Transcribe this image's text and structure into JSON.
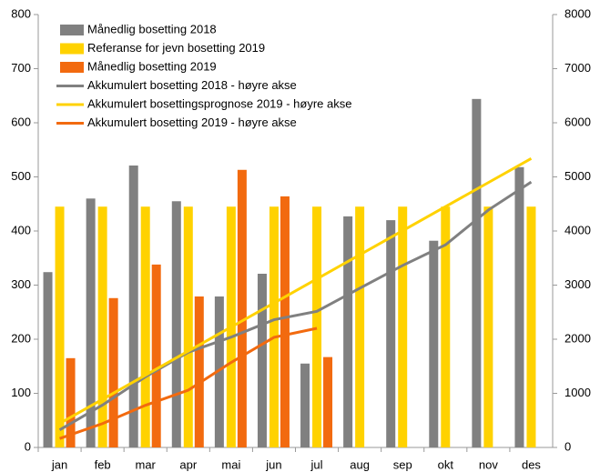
{
  "chart_data": {
    "type": "bar",
    "categories": [
      "jan",
      "feb",
      "mar",
      "apr",
      "mai",
      "jun",
      "jul",
      "aug",
      "sep",
      "okt",
      "nov",
      "des"
    ],
    "series": [
      {
        "name": "Månedlig bosetting 2018",
        "type": "bar",
        "color": "#808080",
        "values": [
          324,
          460,
          521,
          455,
          279,
          321,
          155,
          427,
          420,
          382,
          644,
          518
        ]
      },
      {
        "name": "Referanse for jevn bosetting 2019",
        "type": "bar",
        "color": "#ffd200",
        "values": [
          445,
          445,
          445,
          445,
          445,
          445,
          445,
          445,
          445,
          445,
          445,
          445
        ]
      },
      {
        "name": "Månedlig bosetting 2019",
        "type": "bar",
        "color": "#f26a0f",
        "values": [
          165,
          276,
          338,
          279,
          513,
          464,
          167,
          null,
          null,
          null,
          null,
          null
        ]
      },
      {
        "name": "Akkumulert bosetting 2018 - høyre akse",
        "type": "line",
        "axis": "y2",
        "color": "#808080",
        "values": [
          324,
          784,
          1305,
          1760,
          2039,
          2360,
          2515,
          2942,
          3362,
          3744,
          4388,
          4906
        ]
      },
      {
        "name": "Akkumulert bosettingsprognose 2019 - høyre akse",
        "type": "line",
        "axis": "y2",
        "color": "#ffd200",
        "values": [
          445,
          890,
          1335,
          1780,
          2225,
          2670,
          3115,
          3560,
          4005,
          4450,
          4895,
          5340
        ]
      },
      {
        "name": "Akkumulert bosetting 2019 - høyre akse",
        "type": "line",
        "axis": "y2",
        "color": "#f26a0f",
        "values": [
          165,
          441,
          779,
          1058,
          1571,
          2035,
          2202,
          null,
          null,
          null,
          null,
          null
        ]
      }
    ],
    "ylim": [
      0,
      800
    ],
    "yticks": [
      0,
      100,
      200,
      300,
      400,
      500,
      600,
      700,
      800
    ],
    "y2lim": [
      0,
      8000
    ],
    "y2ticks": [
      0,
      1000,
      2000,
      3000,
      4000,
      5000,
      6000,
      7000,
      8000
    ],
    "grid": false,
    "legend": "top-left"
  }
}
